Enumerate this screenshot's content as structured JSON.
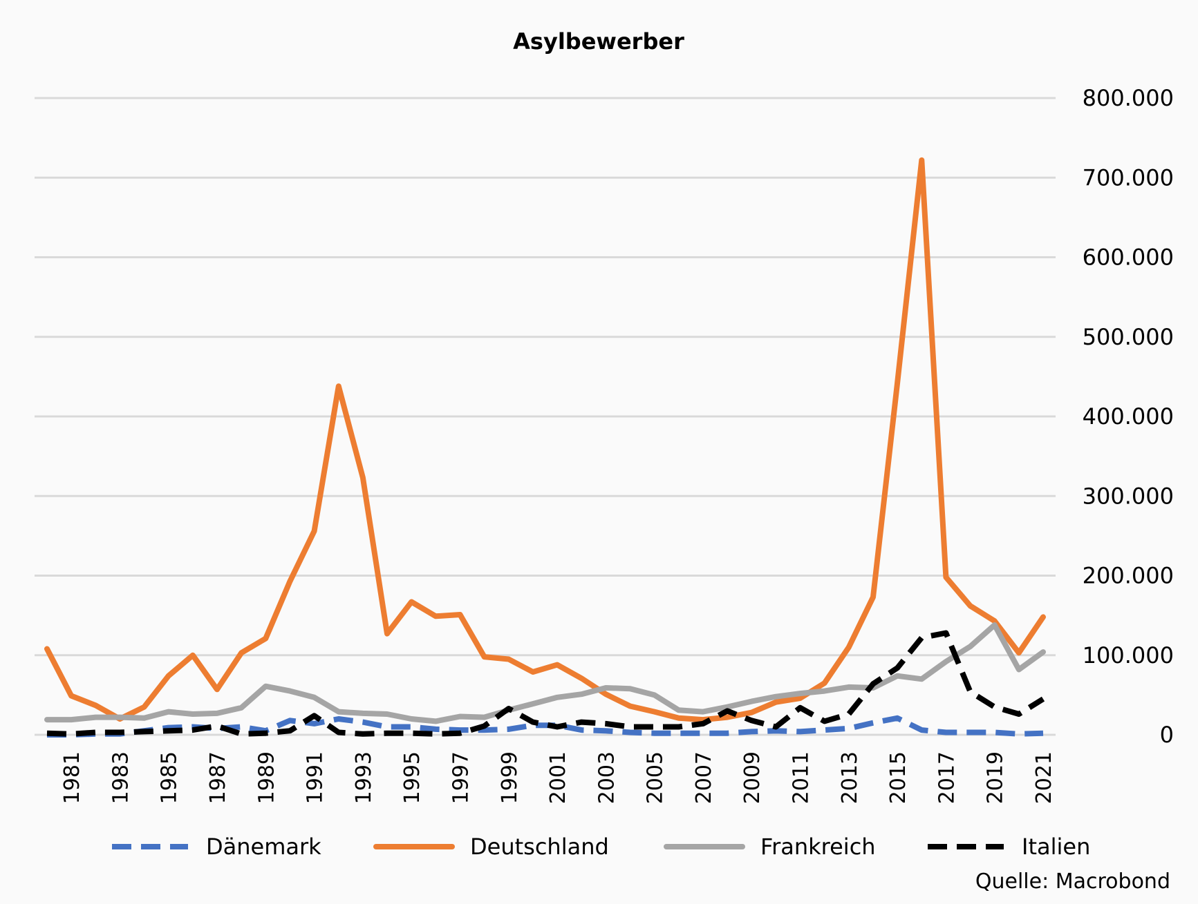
{
  "chart_data": {
    "type": "line",
    "title": "Asylbewerber",
    "source": "Quelle: Macrobond",
    "xlabel": "",
    "ylabel": "",
    "ylim": [
      0,
      800000
    ],
    "yticks": [
      0,
      100000,
      200000,
      300000,
      400000,
      500000,
      600000,
      700000,
      800000
    ],
    "ytick_labels": [
      "0",
      "100.000",
      "200.000",
      "300.000",
      "400.000",
      "500.000",
      "600.000",
      "700.000",
      "800.000"
    ],
    "xlim": [
      1980,
      2021
    ],
    "xticks": [
      1981,
      1983,
      1985,
      1987,
      1989,
      1991,
      1993,
      1995,
      1997,
      1999,
      2001,
      2003,
      2005,
      2007,
      2009,
      2011,
      2013,
      2015,
      2017,
      2019,
      2021
    ],
    "xtick_labels": [
      "1981",
      "1983",
      "1985",
      "1987",
      "1989",
      "1991",
      "1993",
      "1995",
      "1997",
      "1999",
      "2001",
      "2003",
      "2005",
      "2007",
      "2009",
      "2011",
      "2013",
      "2015",
      "2017",
      "2019",
      "2021"
    ],
    "grid": true,
    "legend_position": "bottom",
    "x": [
      1980,
      1981,
      1982,
      1983,
      1984,
      1985,
      1986,
      1987,
      1988,
      1989,
      1990,
      1991,
      1992,
      1993,
      1994,
      1995,
      1996,
      1997,
      1998,
      1999,
      2000,
      2001,
      2002,
      2003,
      2004,
      2005,
      2006,
      2007,
      2008,
      2009,
      2010,
      2011,
      2012,
      2013,
      2014,
      2015,
      2016,
      2017,
      2018,
      2019,
      2020,
      2021
    ],
    "series": [
      {
        "name": "Dänemark",
        "color": "#4472c4",
        "dash": "dashed",
        "values": [
          0,
          0,
          1000,
          1000,
          5000,
          9000,
          10000,
          8000,
          10000,
          5000,
          18000,
          14000,
          20000,
          16000,
          10000,
          10000,
          7000,
          6000,
          6000,
          7000,
          12000,
          12000,
          6000,
          5000,
          3000,
          2000,
          2000,
          2000,
          2000,
          4000,
          5000,
          4000,
          6000,
          8000,
          15000,
          21000,
          6000,
          3000,
          3000,
          3000,
          1000,
          2000
        ]
      },
      {
        "name": "Deutschland",
        "color": "#ed7d31",
        "dash": "solid",
        "values": [
          108000,
          49000,
          37000,
          20000,
          35000,
          74000,
          100000,
          57000,
          103000,
          121000,
          193000,
          256000,
          438000,
          323000,
          127000,
          167000,
          149000,
          151000,
          98000,
          95000,
          79000,
          88000,
          71000,
          51000,
          36000,
          29000,
          21000,
          19000,
          22000,
          28000,
          41000,
          46000,
          65000,
          110000,
          173000,
          442000,
          722000,
          198000,
          162000,
          143000,
          103000,
          148000
        ]
      },
      {
        "name": "Frankreich",
        "color": "#a5a5a5",
        "dash": "solid",
        "values": [
          19000,
          19000,
          22000,
          22000,
          21000,
          29000,
          26000,
          27000,
          34000,
          61000,
          55000,
          47000,
          29000,
          27000,
          26000,
          20000,
          17000,
          23000,
          22000,
          31000,
          39000,
          47000,
          51000,
          59000,
          58000,
          50000,
          31000,
          29000,
          35000,
          42000,
          48000,
          52000,
          55000,
          60000,
          59000,
          74000,
          70000,
          92000,
          111000,
          138000,
          82000,
          104000
        ]
      },
      {
        "name": "Italien",
        "color": "#000000",
        "dash": "dashed",
        "values": [
          2000,
          1000,
          3000,
          3000,
          4000,
          5000,
          6000,
          11000,
          1000,
          2000,
          5000,
          24000,
          3000,
          1000,
          2000,
          2000,
          1000,
          2000,
          11000,
          33000,
          16000,
          10000,
          16000,
          14000,
          10000,
          10000,
          10000,
          14000,
          30000,
          18000,
          10000,
          34000,
          17000,
          26000,
          64000,
          84000,
          122000,
          128000,
          54000,
          35000,
          26000,
          45000
        ]
      }
    ]
  }
}
